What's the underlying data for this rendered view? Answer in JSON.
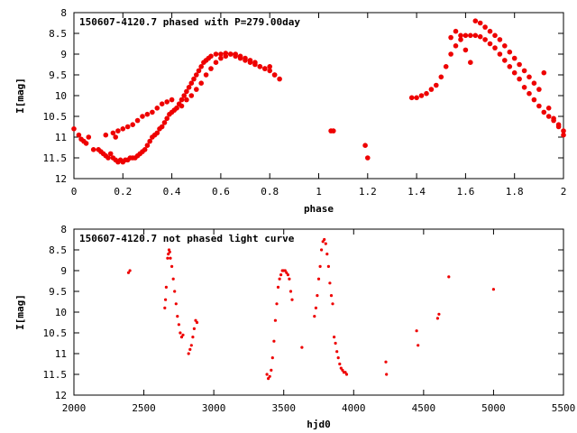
{
  "chart_data": [
    {
      "type": "scatter",
      "title": "150607-4120.7 phased with P=279.00day",
      "xlabel": "phase",
      "ylabel": "I[mag]",
      "xlim": [
        0,
        2
      ],
      "ylim": [
        8,
        12
      ],
      "y_inverted": true,
      "grid": false,
      "xticks": [
        "0",
        "0.2",
        "0.4",
        "0.6",
        "0.8",
        "1",
        "1.2",
        "1.4",
        "1.6",
        "1.8",
        "2"
      ],
      "yticks": [
        "8",
        "8.5",
        "9",
        "9.5",
        "10",
        "10.5",
        "11",
        "11.5",
        "12"
      ],
      "marker_color": "#ee0000",
      "series": [
        {
          "x": [
            0.0,
            0.02,
            0.03,
            0.04,
            0.05,
            0.06,
            0.08,
            0.1,
            0.11,
            0.12,
            0.13,
            0.14,
            0.15,
            0.16,
            0.17,
            0.18,
            0.19,
            0.2,
            0.21,
            0.22,
            0.23,
            0.24,
            0.25,
            0.26,
            0.27,
            0.28,
            0.29,
            0.3,
            0.31,
            0.32,
            0.33,
            0.34,
            0.35,
            0.36,
            0.37,
            0.38,
            0.39,
            0.4,
            0.41,
            0.42,
            0.43,
            0.44,
            0.45,
            0.46,
            0.47,
            0.48,
            0.49,
            0.5,
            0.51,
            0.52,
            0.53,
            0.54,
            0.55,
            0.56,
            0.58,
            0.6,
            0.62,
            0.64,
            0.66,
            0.68,
            0.7,
            0.72,
            0.74,
            0.76,
            0.78,
            0.8,
            0.82,
            0.84,
            0.13,
            0.16,
            0.17,
            0.18,
            0.2,
            0.22,
            0.24,
            0.26,
            0.28,
            0.3,
            0.32,
            0.34,
            0.36,
            0.38,
            0.4,
            0.42,
            0.44,
            0.46,
            0.48,
            0.5,
            0.52,
            0.54,
            0.56,
            0.58,
            0.6,
            0.62,
            0.64,
            0.66,
            0.68,
            0.7,
            0.72,
            0.74,
            0.76,
            0.78,
            0.8,
            0.82,
            1.05,
            1.06,
            1.19,
            1.2,
            1.38,
            1.4,
            1.42,
            1.44,
            1.46,
            1.48,
            1.5,
            1.52,
            1.54,
            1.56,
            1.58,
            1.6,
            1.62,
            1.64,
            1.66,
            1.68,
            1.7,
            1.72,
            1.74,
            1.76,
            1.78,
            1.8,
            1.82,
            1.84,
            1.86,
            1.88,
            1.9,
            1.92,
            1.94,
            1.96,
            1.98,
            2.0,
            1.54,
            1.56,
            1.58,
            1.6,
            1.62,
            1.64,
            1.66,
            1.68,
            1.7,
            1.72,
            1.74,
            1.76,
            1.78,
            1.8,
            1.82,
            1.84,
            1.86,
            1.88,
            1.9,
            1.92,
            1.94,
            1.96,
            1.98,
            2.0
          ],
          "y": [
            10.8,
            10.95,
            11.05,
            11.1,
            11.15,
            11.0,
            11.3,
            11.3,
            11.35,
            11.4,
            11.45,
            11.5,
            11.4,
            11.5,
            11.55,
            11.6,
            11.55,
            11.6,
            11.55,
            11.55,
            11.5,
            11.5,
            11.5,
            11.45,
            11.4,
            11.35,
            11.3,
            11.2,
            11.1,
            11.0,
            10.95,
            10.9,
            10.8,
            10.75,
            10.65,
            10.55,
            10.45,
            10.4,
            10.35,
            10.3,
            10.2,
            10.1,
            10.0,
            9.9,
            9.8,
            9.7,
            9.6,
            9.5,
            9.4,
            9.3,
            9.2,
            9.15,
            9.1,
            9.05,
            9.0,
            9.0,
            8.98,
            9.0,
            9.05,
            9.1,
            9.15,
            9.2,
            9.25,
            9.3,
            9.35,
            9.4,
            9.5,
            9.6,
            10.95,
            10.9,
            11.0,
            10.85,
            10.8,
            10.75,
            10.7,
            10.6,
            10.5,
            10.45,
            10.4,
            10.3,
            10.2,
            10.15,
            10.1,
            10.3,
            10.25,
            10.1,
            10.0,
            9.85,
            9.7,
            9.5,
            9.35,
            9.2,
            9.1,
            9.05,
            9.0,
            9.0,
            9.05,
            9.1,
            9.15,
            9.2,
            9.3,
            9.35,
            9.3,
            9.5,
            10.85,
            10.85,
            11.2,
            11.5,
            10.05,
            10.05,
            10.0,
            9.95,
            9.85,
            9.75,
            9.55,
            9.3,
            9.0,
            8.8,
            8.65,
            8.55,
            8.55,
            8.55,
            8.58,
            8.65,
            8.75,
            8.85,
            9.0,
            9.15,
            9.3,
            9.45,
            9.6,
            9.8,
            9.95,
            10.1,
            10.25,
            10.4,
            10.5,
            10.6,
            10.7,
            10.85,
            8.6,
            8.45,
            8.55,
            8.9,
            9.2,
            8.2,
            8.25,
            8.35,
            8.45,
            8.55,
            8.65,
            8.8,
            8.95,
            9.1,
            9.25,
            9.4,
            9.55,
            9.7,
            9.85,
            9.45,
            10.3,
            10.55,
            10.75,
            10.95
          ]
        }
      ]
    },
    {
      "type": "scatter",
      "title": "150607-4120.7 not phased light curve",
      "xlabel": "hjd0",
      "ylabel": "I[mag]",
      "xlim": [
        2000,
        5500
      ],
      "ylim": [
        8,
        12
      ],
      "y_inverted": true,
      "grid": false,
      "xticks": [
        "2000",
        "2500",
        "3000",
        "3500",
        "4000",
        "4500",
        "5000",
        "5500"
      ],
      "yticks": [
        "8",
        "8.5",
        "9",
        "9.5",
        "10",
        "10.5",
        "11",
        "11.5",
        "12"
      ],
      "marker_color": "#ee0000",
      "series": [
        {
          "x": [
            2390,
            2400,
            2650,
            2655,
            2660,
            2670,
            2675,
            2680,
            2685,
            2690,
            2700,
            2710,
            2720,
            2730,
            2740,
            2750,
            2760,
            2770,
            2780,
            2820,
            2830,
            2840,
            2850,
            2860,
            2870,
            2880,
            3380,
            3390,
            3400,
            3410,
            3420,
            3430,
            3440,
            3450,
            3460,
            3470,
            3480,
            3490,
            3500,
            3510,
            3520,
            3530,
            3540,
            3550,
            3560,
            3630,
            3720,
            3730,
            3740,
            3750,
            3760,
            3770,
            3780,
            3790,
            3800,
            3810,
            3820,
            3830,
            3840,
            3850,
            3860,
            3870,
            3880,
            3890,
            3900,
            3910,
            3920,
            3930,
            3940,
            3950,
            4230,
            4235,
            4450,
            4460,
            4600,
            4610,
            4680,
            5000
          ],
          "y": [
            9.05,
            9.0,
            9.9,
            9.7,
            9.4,
            8.7,
            8.6,
            8.5,
            8.55,
            8.7,
            8.9,
            9.2,
            9.5,
            9.8,
            10.1,
            10.3,
            10.5,
            10.6,
            10.55,
            11.0,
            10.9,
            10.8,
            10.6,
            10.4,
            10.2,
            10.25,
            11.5,
            11.6,
            11.55,
            11.4,
            11.1,
            10.7,
            10.2,
            9.8,
            9.4,
            9.2,
            9.1,
            9.0,
            9.0,
            9.0,
            9.05,
            9.1,
            9.2,
            9.5,
            9.7,
            10.85,
            10.1,
            9.9,
            9.6,
            9.2,
            8.9,
            8.5,
            8.3,
            8.25,
            8.35,
            8.6,
            8.9,
            9.3,
            9.6,
            9.8,
            10.6,
            10.75,
            10.95,
            11.1,
            11.25,
            11.35,
            11.4,
            11.45,
            11.45,
            11.5,
            11.2,
            11.5,
            10.45,
            10.8,
            10.15,
            10.05,
            9.15,
            9.45
          ]
        }
      ]
    }
  ]
}
